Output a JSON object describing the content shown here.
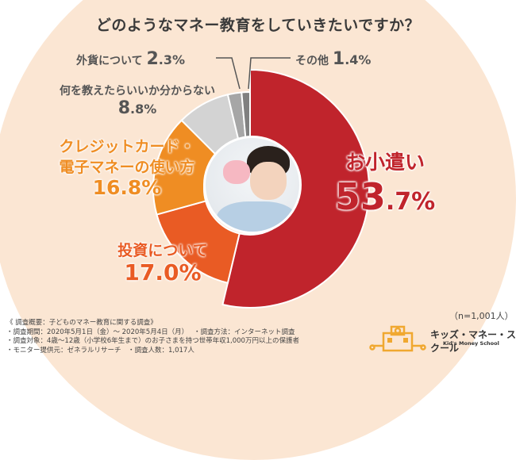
{
  "title": "どのようなマネー教育をしていきたいですか？",
  "labels": {
    "gaika": {
      "text": "外貨について",
      "value_int": "2",
      "value_dec": ".3%"
    },
    "other": {
      "text": "その他",
      "value_int": "1",
      "value_dec": ".4%"
    },
    "unknown": {
      "text": "何を教えたらいいか分からない",
      "value_int": "8",
      "value_dec": ".8%"
    },
    "credit": {
      "line1": "クレジットカード・",
      "line2": "電子マネーの使い方",
      "value": "16.8%"
    },
    "invest": {
      "text": "投資について",
      "value": "17.0%"
    },
    "allowance": {
      "text": "お小遣い",
      "value_int": "53",
      "value_dec": ".7%"
    }
  },
  "sample": "（n=1,001人）",
  "notes": {
    "heading": "《 調査概要：子どものマネー教育に関する調査》",
    "items": [
      "・調査期間：2020年5月1日（金）～ 2020年5月4日（月）　 ・調査方法：インターネット調査",
      "・調査対象：4歳～12歳（小学校6年生まで）のお子さまを持つ世帯年収1,000万円以上の保護者",
      "・モニター提供元：ゼネラルリサーチ　・調査人数：1,017人"
    ]
  },
  "logo": {
    "name": "キッズ・マネー・スクール",
    "sub": "Kid's Money School",
    "icon": "school-building-icon"
  },
  "chart_data": {
    "type": "pie",
    "title": "どのようなマネー教育をしていきたいですか？",
    "categories": [
      "お小遣い",
      "投資について",
      "クレジットカード・電子マネーの使い方",
      "何を教えたらいいか分からない",
      "外貨について",
      "その他"
    ],
    "values": [
      53.7,
      17.0,
      16.8,
      8.8,
      2.3,
      1.4
    ],
    "colors": [
      "#c0242c",
      "#e95b24",
      "#ef8d23",
      "#d3d3d3",
      "#a6a6a6",
      "#808080"
    ],
    "unit": "%",
    "n": 1001,
    "donut": true
  }
}
